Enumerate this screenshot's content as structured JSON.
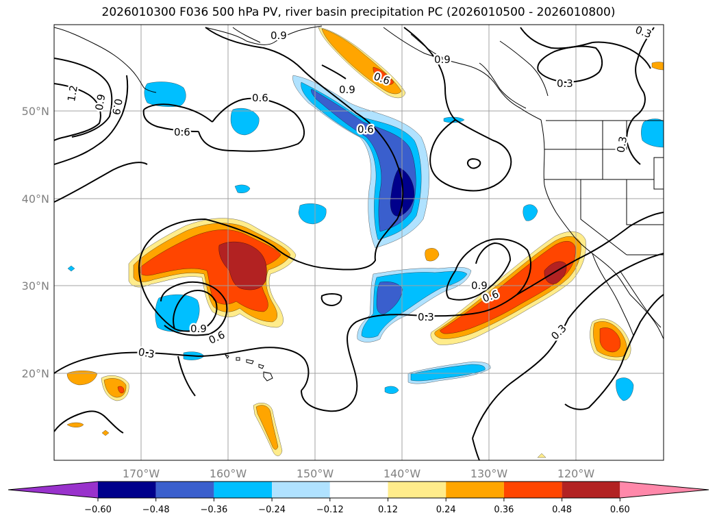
{
  "title": "2026010300 F036 500 hPa PV, river basin precipitation PC (2026010500 - 2026010800)",
  "map": {
    "lat_labels": [
      "50°N",
      "40°N",
      "30°N",
      "20°N"
    ],
    "lon_labels": [
      "170°W",
      "160°W",
      "150°W",
      "140°W",
      "130°W",
      "120°W"
    ],
    "contour_labels": [
      "0.9",
      "1.2",
      "0.9",
      "0.9",
      "0.6",
      "0.6",
      "0.9",
      "0.6",
      "0.6",
      "0.9",
      "0.3",
      "0.3",
      "0.3",
      "0.9",
      "0.6",
      "0.9",
      "0.6",
      "0.3",
      "0.3",
      "0.3"
    ]
  },
  "colorbar": {
    "ticks": [
      "−0.60",
      "−0.48",
      "−0.36",
      "−0.24",
      "−0.12",
      "0.12",
      "0.24",
      "0.36",
      "0.48",
      "0.60"
    ],
    "colors": [
      "#9932cc",
      "#00008b",
      "#3a5fcd",
      "#00bfff",
      "#b0e2ff",
      "#ffffff",
      "#ffec8b",
      "#ffa500",
      "#ff4500",
      "#b22222",
      "#ff88aa"
    ]
  },
  "colors": {
    "c_dark_blue": "#00008b",
    "c_mid_blue": "#3a5fcd",
    "c_sky": "#00bfff",
    "c_light_blue": "#b0e2ff",
    "c_light_yellow": "#ffec8b",
    "c_orange": "#ffa500",
    "c_red_orange": "#ff4500",
    "c_dark_red": "#b22222"
  }
}
